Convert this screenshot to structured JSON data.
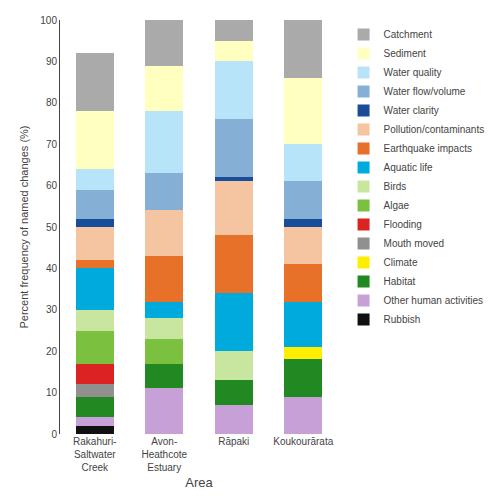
{
  "chart_data": {
    "type": "bar",
    "stacked": true,
    "xlabel": "Area",
    "ylabel": "Percent frequency of named changes (%)",
    "categories": [
      "Rakahuri-\nSaltwater\nCreek",
      "Avon-\nHeathcote\nEstuary",
      "Rāpaki",
      "Koukourārata"
    ],
    "series": [
      {
        "name": "Rubbish",
        "color": "#111111",
        "values": [
          2,
          0,
          0,
          0
        ]
      },
      {
        "name": "Other human activities",
        "color": "#c8a0d8",
        "values": [
          2,
          11,
          7,
          9
        ]
      },
      {
        "name": "Habitat",
        "color": "#228822",
        "values": [
          5,
          6,
          6,
          9
        ]
      },
      {
        "name": "Climate",
        "color": "#ffee00",
        "values": [
          0,
          0,
          0,
          3
        ]
      },
      {
        "name": "Mouth moved",
        "color": "#909090",
        "values": [
          3,
          0,
          0,
          0
        ]
      },
      {
        "name": "Flooding",
        "color": "#dd2222",
        "values": [
          5,
          0,
          0,
          0
        ]
      },
      {
        "name": "Algae",
        "color": "#7cc040",
        "values": [
          8,
          6,
          0,
          0
        ]
      },
      {
        "name": "Birds",
        "color": "#c8e6a0",
        "values": [
          5,
          5,
          7,
          0
        ]
      },
      {
        "name": "Aquatic life",
        "color": "#00aadd",
        "values": [
          10,
          4,
          14,
          11
        ]
      },
      {
        "name": "Earthquake impacts",
        "color": "#e8712a",
        "values": [
          2,
          11,
          14,
          9
        ]
      },
      {
        "name": "Pollution/contaminants",
        "color": "#f5c4a0",
        "values": [
          8,
          11,
          13,
          9
        ]
      },
      {
        "name": "Water clarity",
        "color": "#1a4d99",
        "values": [
          2,
          0,
          1,
          2
        ]
      },
      {
        "name": "Water flow/volume",
        "color": "#85afd4",
        "values": [
          7,
          9,
          14,
          9
        ]
      },
      {
        "name": "Water quality",
        "color": "#b8e4f9",
        "values": [
          5,
          15,
          14,
          9
        ]
      },
      {
        "name": "Sediment",
        "color": "#ffffc0",
        "values": [
          14,
          11,
          5,
          16
        ]
      },
      {
        "name": "Catchment",
        "color": "#aaaaaa",
        "values": [
          14,
          11,
          5,
          14
        ]
      }
    ],
    "ylim": [
      0,
      100
    ],
    "yticks": [
      0,
      10,
      20,
      30,
      40,
      50,
      60,
      70,
      80,
      90,
      100
    ],
    "grid": false,
    "legend": "right"
  }
}
